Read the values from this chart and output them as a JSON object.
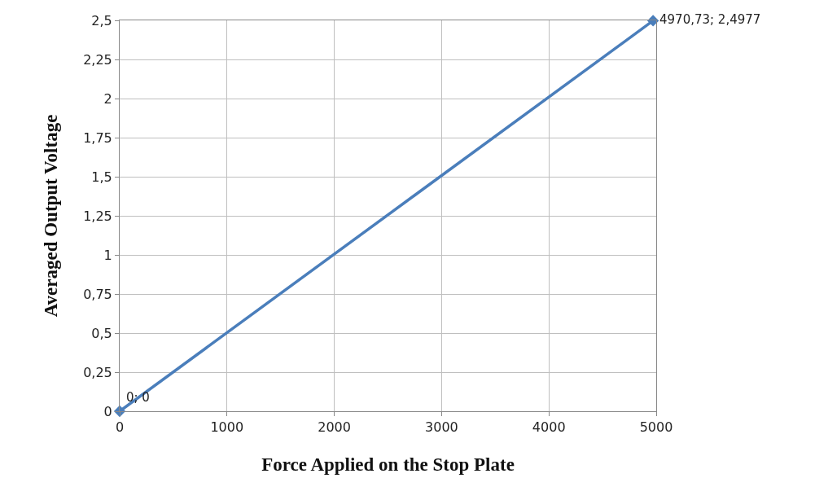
{
  "chart_data": {
    "type": "line",
    "xlabel": "Force Applied on the Stop Plate",
    "ylabel": "Averaged Output Voltage",
    "x": [
      0,
      4970.73
    ],
    "series": [
      {
        "color": "#4a7ebb",
        "values": [
          0,
          2.4977
        ],
        "value_labels": [
          "0; 0",
          "4970,73; 2,4977"
        ]
      }
    ],
    "xlim": [
      0,
      5000
    ],
    "xticks": [
      0,
      1000,
      2000,
      3000,
      4000,
      5000
    ],
    "ylim": [
      0,
      2.5
    ],
    "yticks": [
      0,
      {
        "value": 0.25,
        "label": "0,25"
      },
      {
        "value": 0.5,
        "label": "0,5"
      },
      {
        "value": 0.75,
        "label": "0,75"
      },
      1,
      {
        "value": 1.25,
        "label": "1,25"
      },
      {
        "value": 1.5,
        "label": "1,5"
      },
      {
        "value": 1.75,
        "label": "1,75"
      },
      2,
      {
        "value": 2.25,
        "label": "2,25"
      },
      {
        "value": 2.5,
        "label": "2,5"
      }
    ],
    "grid": true,
    "marker": "diamond",
    "line_style": "solid"
  }
}
